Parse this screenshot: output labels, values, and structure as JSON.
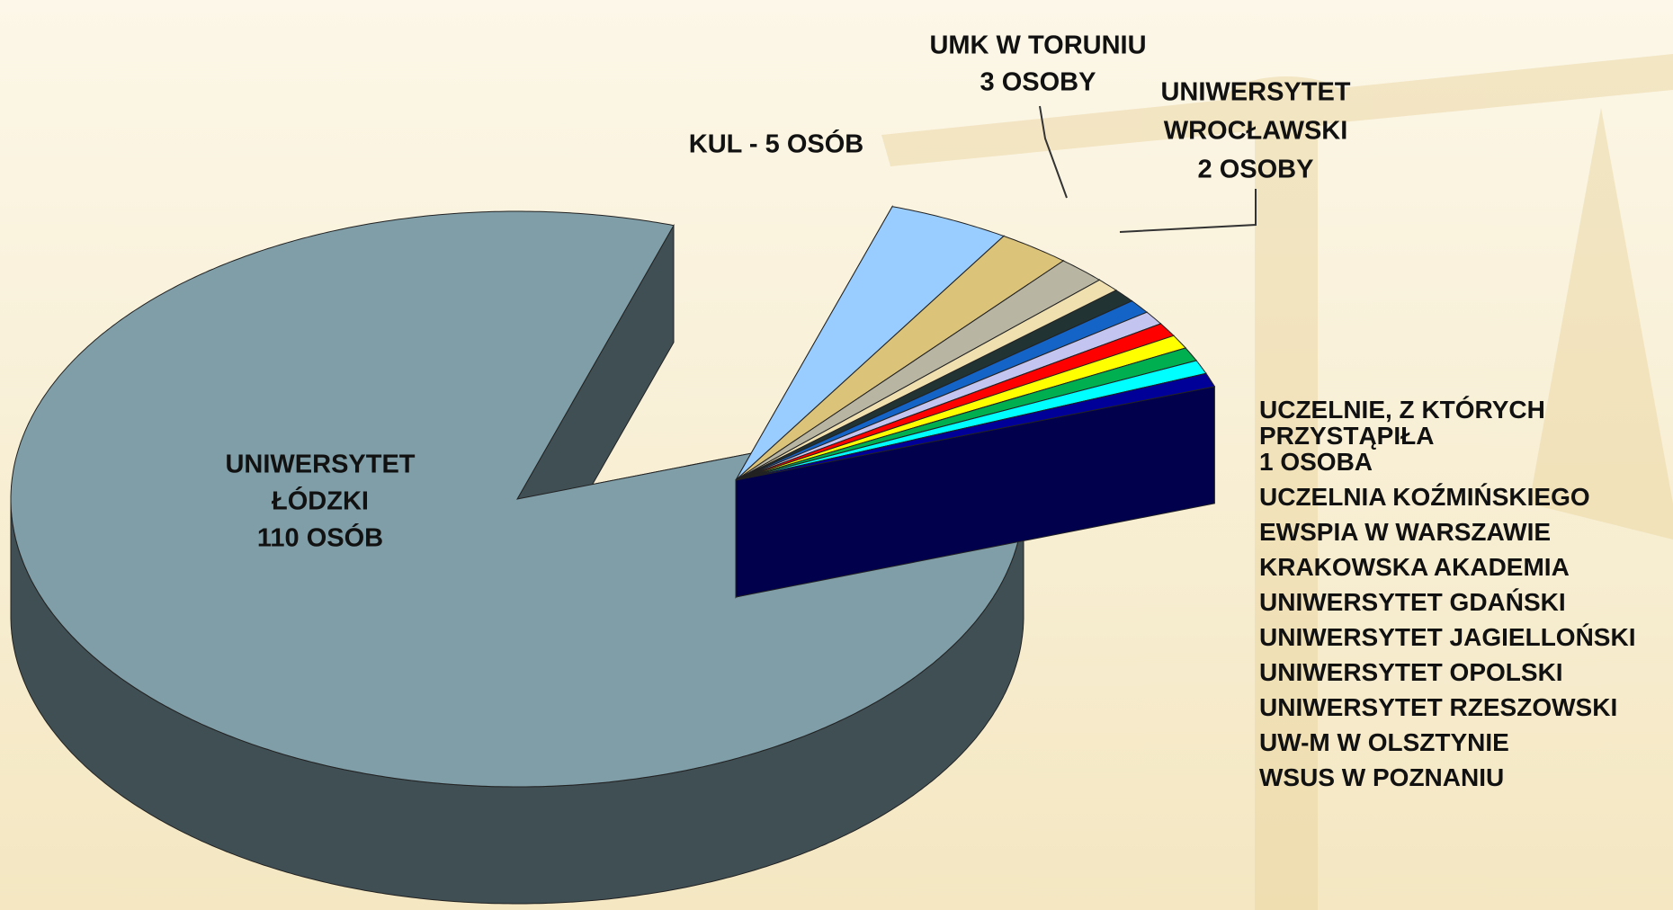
{
  "chart_data": {
    "type": "pie3d",
    "categories": [
      null,
      null,
      null,
      null,
      "UCZELNIA KOŹMIŃSKIEGO",
      "EWSPIA W WARSZAWIE",
      "KRAKOWSKA AKADEMIA",
      "UNIWERSYTET GDAŃSKI",
      "UNIWERSYTET JAGIELLOŃSKI",
      "UNIWERSYTET OPOLSKI",
      "UNIWERSYTET RZESZOWSKI",
      "UW-M W OLSZTYNIE",
      "WSUS W POZNANIU"
    ],
    "values": [
      110,
      5,
      3,
      2,
      1,
      1,
      1,
      1,
      1,
      1,
      1,
      1,
      1
    ],
    "value_labels": [
      [
        "UNIWERSYTET",
        "ŁÓDZKI",
        "110 OSÓB"
      ],
      [
        "KUL - 5 OSÓB"
      ],
      [
        "UMK W TORUNIU",
        "3 OSOBY"
      ],
      [
        "UNIWERSYTET",
        "WROCŁAWSKI",
        "2 OSOBY"
      ],
      null,
      null,
      null,
      null,
      null,
      null,
      null,
      null,
      null
    ],
    "colors": [
      "#7f9ea8",
      "#99ccff",
      "#dcc37a",
      "#b8b5a2",
      "#f0e0b0",
      "#223333",
      "#1464c8",
      "#c4c4f0",
      "#ff0000",
      "#ffff00",
      "#00b050",
      "#00ffff",
      "#000099"
    ],
    "legend_title": [
      "UCZELNIE, Z KTÓRYCH PRZYSTĄPIŁA",
      "1 OSOBA"
    ]
  }
}
